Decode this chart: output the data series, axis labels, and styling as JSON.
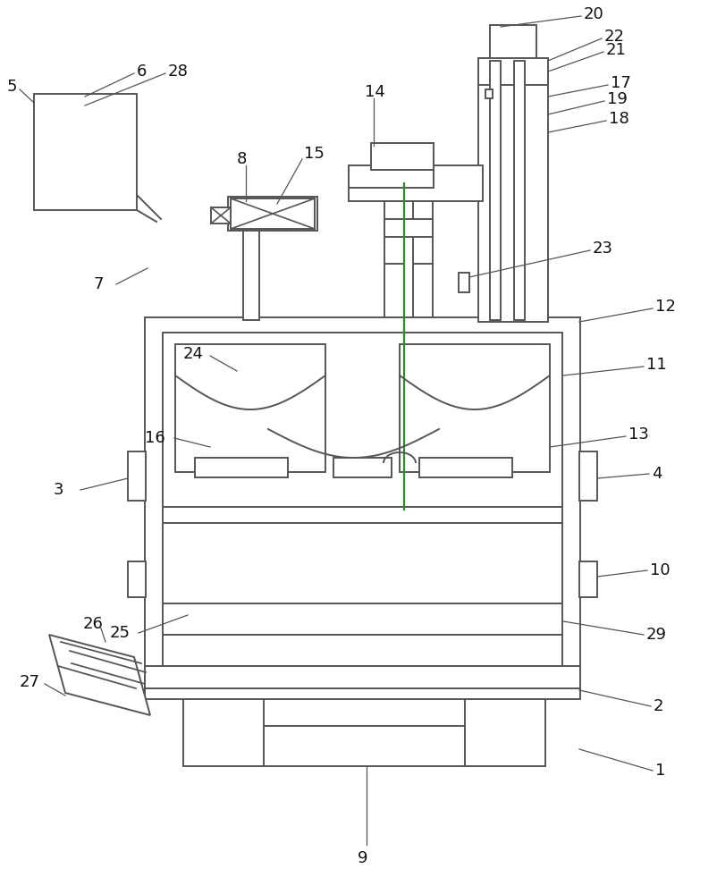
{
  "bg_color": "#ffffff",
  "line_color": "#555555",
  "green_color": "#2e8b2e",
  "fig_width": 8.02,
  "fig_height": 10.0,
  "dpi": 100
}
